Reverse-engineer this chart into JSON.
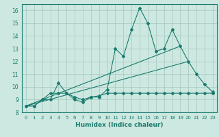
{
  "xlabel": "Humidex (Indice chaleur)",
  "x_values": [
    0,
    1,
    2,
    3,
    4,
    5,
    6,
    7,
    8,
    9,
    10,
    11,
    12,
    13,
    14,
    15,
    16,
    17,
    18,
    19,
    20,
    21,
    22,
    23
  ],
  "line1_y": [
    8.5,
    8.5,
    9.0,
    9.0,
    10.3,
    9.5,
    9.0,
    8.8,
    9.2,
    9.2,
    9.8,
    13.0,
    12.4,
    14.5,
    16.2,
    15.0,
    12.8,
    13.0,
    14.5,
    13.2,
    12.0,
    11.0,
    10.2,
    9.6
  ],
  "line2_y": [
    8.5,
    8.5,
    9.0,
    9.5,
    9.5,
    9.5,
    9.2,
    9.0,
    9.2,
    9.3,
    9.5,
    9.5,
    9.5,
    9.5,
    9.5,
    9.5,
    9.5,
    9.5,
    9.5,
    9.5,
    9.5,
    9.5,
    9.5,
    9.5
  ],
  "trend1_x": [
    0,
    19
  ],
  "trend1_y": [
    8.5,
    13.2
  ],
  "trend2_x": [
    0,
    20
  ],
  "trend2_y": [
    8.5,
    12.0
  ],
  "line_color": "#1a7a6e",
  "bg_color": "#cce8e0",
  "grid_color": "#aaccc4",
  "ylim": [
    8.0,
    16.5
  ],
  "xlim": [
    -0.5,
    23.5
  ],
  "yticks": [
    8,
    9,
    10,
    11,
    12,
    13,
    14,
    15,
    16
  ],
  "xticks": [
    0,
    1,
    2,
    3,
    4,
    5,
    6,
    7,
    8,
    9,
    10,
    11,
    12,
    13,
    14,
    15,
    16,
    17,
    18,
    19,
    20,
    21,
    22,
    23
  ]
}
